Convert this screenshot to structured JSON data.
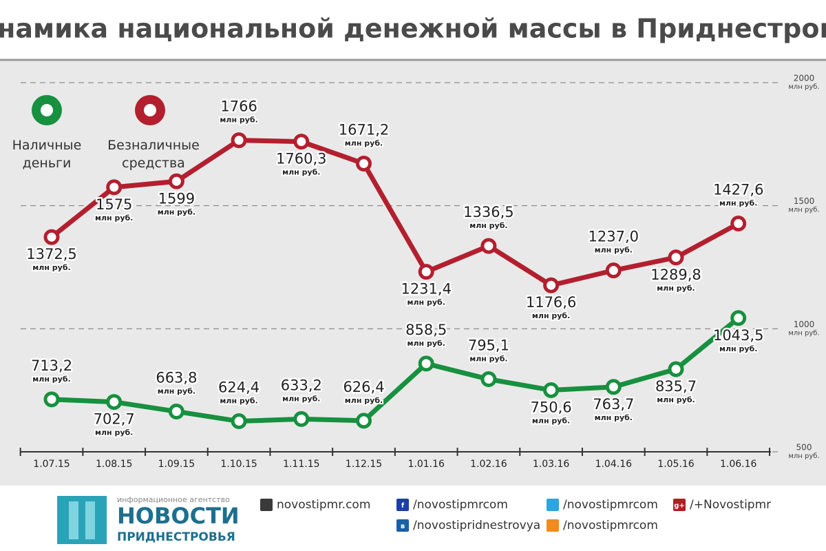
{
  "chart_data": {
    "type": "line",
    "title": "Динамика национальной денежной массы в Приднестровье",
    "categories": [
      "1.07.15",
      "1.08.15",
      "1.09.15",
      "1.10.15",
      "1.11.15",
      "1.12.15",
      "1.01.16",
      "1.02.16",
      "1.03.16",
      "1.04.16",
      "1.05.16",
      "1.06.16"
    ],
    "unit_label": "млн руб.",
    "series": [
      {
        "name": "Наличные деньги",
        "color": "#17903f",
        "values": [
          713.2,
          702.7,
          663.8,
          624.4,
          633.2,
          626.4,
          858.5,
          795.1,
          750.6,
          763.7,
          835.7,
          1043.5
        ],
        "value_labels": [
          "713,2",
          "702,7",
          "663,8",
          "624,4",
          "633,2",
          "626,4",
          "858,5",
          "795,1",
          "750,6",
          "763,7",
          "835,7",
          "1043,5"
        ]
      },
      {
        "name": "Безналичные средства",
        "color": "#b31f2e",
        "values": [
          1372.5,
          1575,
          1599,
          1766,
          1760.3,
          1671.2,
          1231.4,
          1336.5,
          1176.6,
          1237.0,
          1289.8,
          1427.6
        ],
        "value_labels": [
          "1372,5",
          "1575",
          "1599",
          "1766",
          "1760,3",
          "1671,2",
          "1231,4",
          "1336,5",
          "1176,6",
          "1237,0",
          "1289,8",
          "1427,6"
        ]
      }
    ],
    "ylim": [
      500,
      2000
    ],
    "yticks": [
      500,
      1000,
      1500,
      2000
    ],
    "grid": true
  },
  "footer": {
    "agency": "информационное агентство",
    "logo_top": "НОВОСТИ",
    "logo_bottom": "ПРИДНЕСТРОВЬЯ",
    "links": [
      {
        "text": "novostipmr.com"
      },
      {
        "icon": "f",
        "text": "/novostipmrcom"
      },
      {
        "text": "/novostipmrcom"
      },
      {
        "icon": "g+",
        "text": "/+Novostipmr"
      },
      {
        "icon": "в",
        "text": "/novostipridnestrovya"
      },
      {
        "text": "/novostipmrcom"
      }
    ]
  }
}
